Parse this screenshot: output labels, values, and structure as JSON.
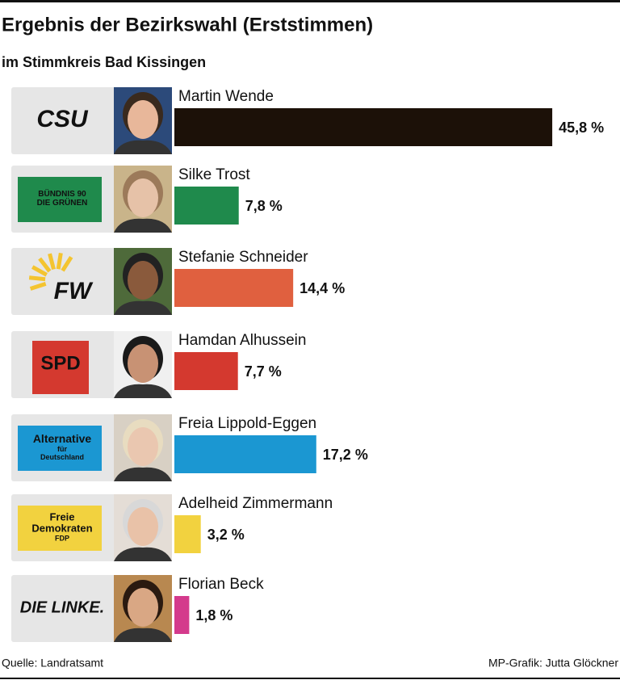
{
  "chart_data": {
    "type": "bar",
    "orientation": "horizontal",
    "title": "Ergebnis der Bezirkswahl (Erststimmen)",
    "subtitle": "im Stimmkreis Bad Kissingen",
    "categories": [
      "Martin Wende",
      "Silke Trost",
      "Stefanie Schneider",
      "Hamdan Alhussein",
      "Freia Lippold-Eggen",
      "Adelheid Zimmermann",
      "Florian Beck"
    ],
    "values": [
      45.8,
      7.8,
      14.4,
      7.7,
      17.2,
      3.2,
      1.8
    ],
    "value_labels": [
      "45,8 %",
      "7,8 %",
      "14,4 %",
      "7,7 %",
      "17,2 %",
      "3,2 %",
      "1,8 %"
    ],
    "colors": [
      "#1c1108",
      "#1f8a4c",
      "#e0603f",
      "#d4392f",
      "#1b97d2",
      "#f2d23f",
      "#d43a8c"
    ],
    "logos": [
      [
        "CSU"
      ],
      [
        "BÜNDNIS 90",
        "DIE GRÜNEN"
      ],
      [
        "FW"
      ],
      [
        "SPD"
      ],
      [
        "Alternative",
        "für",
        "Deutschland"
      ],
      [
        "Freie",
        "Demokraten",
        "FDP"
      ],
      [
        "DIE LINKE."
      ]
    ],
    "source": "Quelle: Landratsamt",
    "credit": "MP-Grafik: Jutta Glöckner"
  }
}
